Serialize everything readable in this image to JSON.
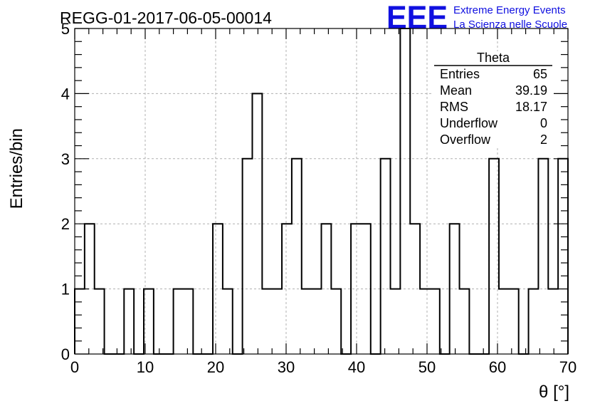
{
  "chart_data": {
    "type": "bar",
    "title": "REGG-01-2017-06-05-00014",
    "xlabel": "θ [°]",
    "ylabel": "Entries/bin",
    "xlim": [
      0,
      70
    ],
    "ylim": [
      0,
      5
    ],
    "x_ticks": [
      "0",
      "10",
      "20",
      "30",
      "40",
      "50",
      "60",
      "70"
    ],
    "y_ticks": [
      "0",
      "1",
      "2",
      "3",
      "4",
      "5"
    ],
    "grid": true,
    "bin_width": 1.4,
    "values": [
      1,
      2,
      1,
      0,
      0,
      1,
      0,
      1,
      0,
      0,
      1,
      1,
      0,
      0,
      2,
      1,
      0,
      3,
      4,
      1,
      1,
      2,
      3,
      1,
      1,
      2,
      1,
      0,
      2,
      2,
      0,
      3,
      1,
      5,
      2,
      1,
      1,
      0,
      2,
      1,
      0,
      0,
      3,
      1,
      1,
      0,
      1,
      3,
      1,
      3
    ],
    "stats": {
      "title": "Theta",
      "rows": [
        {
          "label": "Entries",
          "value": "65"
        },
        {
          "label": "Mean",
          "value": "39.19"
        },
        {
          "label": "RMS",
          "value": "18.17"
        },
        {
          "label": "Underflow",
          "value": "0"
        },
        {
          "label": "Overflow",
          "value": "2"
        }
      ]
    }
  },
  "logo": {
    "text": "EEE",
    "line1": "Extreme Energy Events",
    "line2": "La Scienza nelle Scuole",
    "color": "#1010e0"
  },
  "colors": {
    "hist": "#000000",
    "grid": "#b0b0b0"
  }
}
